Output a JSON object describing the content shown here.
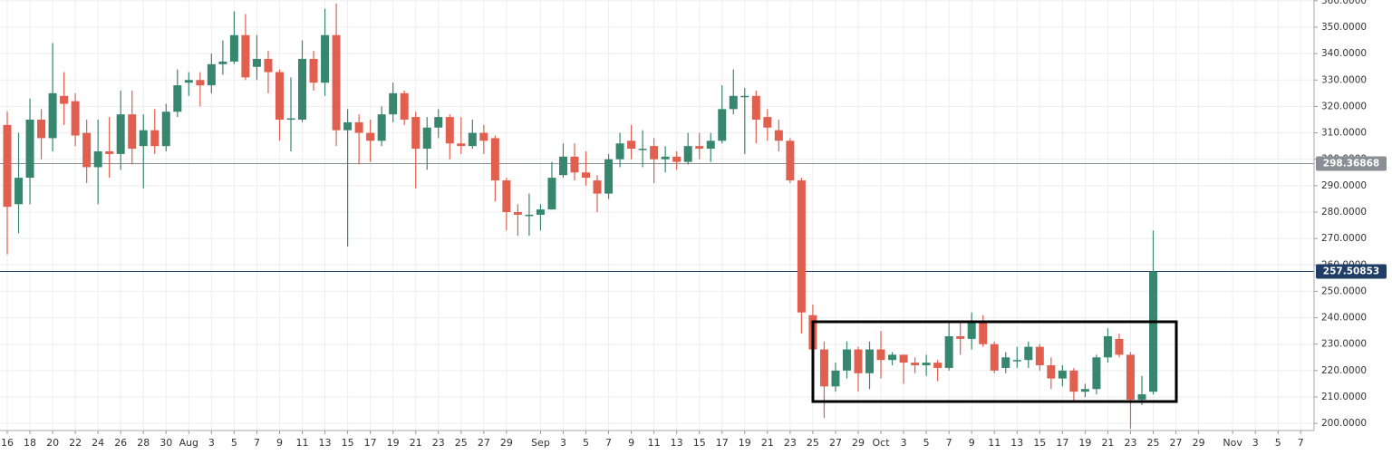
{
  "chart_data": {
    "type": "candlestick",
    "categories": [
      "16",
      null,
      "18",
      null,
      "20",
      null,
      "22",
      null,
      "24",
      null,
      "26",
      null,
      "28",
      null,
      "30",
      null,
      "Aug",
      null,
      "3",
      null,
      "5",
      null,
      "7",
      null,
      "9",
      null,
      "11",
      null,
      "13",
      null,
      "15",
      null,
      "17",
      null,
      "19",
      null,
      "21",
      null,
      "23",
      null,
      "25",
      null,
      "27",
      null,
      "29",
      null,
      null,
      "Sep",
      null,
      "3",
      null,
      "5",
      null,
      "7",
      null,
      "9",
      null,
      "11",
      null,
      "13",
      null,
      "15",
      null,
      "17",
      null,
      "19",
      null,
      "21",
      null,
      "23",
      null,
      "25",
      null,
      "27",
      null,
      "29",
      null,
      "Oct",
      null,
      "3",
      null,
      "5",
      null,
      "7",
      null,
      "9",
      null,
      "11",
      null,
      "13",
      null,
      "15",
      null,
      "17",
      null,
      "19",
      null,
      "21",
      null,
      "23",
      null,
      "25",
      null,
      "27",
      null,
      "29",
      null,
      null,
      "Nov",
      null,
      "3",
      null,
      "5",
      null,
      "7"
    ],
    "open": [
      313,
      283,
      293,
      315,
      308,
      324,
      322,
      310,
      297,
      303,
      302,
      317,
      305,
      311,
      305,
      318,
      329,
      330,
      328,
      336,
      337,
      347,
      335,
      338,
      333,
      315,
      315,
      338,
      329,
      347,
      311,
      314,
      310,
      307,
      317,
      325,
      316,
      304,
      312,
      316,
      306,
      305,
      310,
      308,
      292,
      280,
      279,
      279,
      281,
      294,
      301,
      295,
      292,
      287,
      300,
      307,
      304,
      305,
      300,
      301,
      299,
      305,
      304,
      307,
      319,
      324,
      324,
      316,
      311,
      307,
      292,
      241,
      228,
      214,
      220,
      228,
      219,
      228,
      224,
      226,
      223,
      222,
      223,
      221,
      233,
      232,
      239,
      230,
      221,
      224,
      224,
      229,
      222,
      217,
      220,
      212,
      213,
      225,
      232,
      226,
      209,
      212,
      null,
      null,
      null,
      null,
      null,
      null,
      null,
      null,
      null,
      null,
      null,
      null,
      null
    ],
    "high": [
      318,
      310,
      323,
      319,
      344,
      333,
      325,
      315,
      315,
      316,
      326,
      326,
      317,
      319,
      321,
      334,
      333,
      333,
      340,
      345,
      356,
      355,
      347,
      341,
      334,
      331,
      345,
      341,
      357,
      359,
      319,
      317,
      315,
      320,
      329,
      326,
      318,
      316,
      319,
      317,
      316,
      315,
      313,
      309,
      293,
      283,
      287,
      283,
      299,
      306,
      306,
      303,
      294,
      302,
      310,
      313,
      311,
      308,
      305,
      303,
      310,
      310,
      310,
      328,
      334,
      327,
      326,
      319,
      315,
      308,
      293,
      245,
      231,
      223,
      231,
      229,
      231,
      235,
      227,
      226,
      225,
      226,
      224,
      238,
      238,
      242,
      241,
      231,
      227,
      229,
      231,
      230,
      225,
      222,
      221,
      215,
      226,
      236,
      234,
      227,
      218,
      273,
      null,
      null,
      null,
      null,
      null,
      null,
      null,
      null,
      null,
      null,
      null,
      null,
      null
    ],
    "low": [
      264,
      272,
      283,
      300,
      303,
      313,
      305,
      291,
      283,
      293,
      296,
      298,
      289,
      302,
      303,
      316,
      324,
      320,
      325,
      332,
      336,
      330,
      330,
      325,
      307,
      303,
      314,
      326,
      324,
      305,
      267,
      298,
      299,
      305,
      314,
      313,
      289,
      296,
      308,
      300,
      302,
      304,
      302,
      284,
      273,
      271,
      271,
      273,
      281,
      293,
      292,
      290,
      280,
      285,
      297,
      300,
      297,
      291,
      295,
      296,
      298,
      300,
      299,
      306,
      317,
      302,
      306,
      307,
      303,
      291,
      234,
      226,
      202,
      212,
      217,
      212,
      213,
      217,
      222,
      215,
      219,
      218,
      216,
      220,
      226,
      228,
      229,
      219,
      219,
      221,
      221,
      220,
      213,
      214,
      208,
      210,
      211,
      223,
      225,
      198,
      207,
      211,
      null,
      null,
      null,
      null,
      null,
      null,
      null,
      null,
      null,
      null,
      null,
      null,
      null
    ],
    "close": [
      282,
      293,
      315,
      308,
      325,
      321,
      309,
      297,
      303,
      302,
      317,
      304,
      311,
      305,
      318,
      328,
      330,
      328,
      336,
      337,
      347,
      331,
      338,
      333,
      315,
      315.5,
      338,
      329,
      347,
      311,
      314,
      310,
      307,
      317,
      325,
      315,
      304,
      312,
      316,
      306,
      305,
      310,
      307,
      292,
      280,
      279,
      279,
      281,
      293,
      301,
      295,
      293,
      287,
      300,
      306,
      304,
      304,
      300,
      301,
      299,
      305,
      304,
      307,
      319,
      324,
      324,
      315,
      312,
      307,
      292,
      242,
      228,
      214,
      220,
      228,
      219,
      228,
      224,
      226,
      223,
      222,
      223,
      221,
      233,
      232,
      239,
      230,
      220,
      225,
      224,
      229,
      222,
      217,
      220,
      212,
      213,
      225,
      233,
      226,
      209,
      211,
      257.50853,
      null,
      null,
      null,
      null,
      null,
      null,
      null,
      null,
      null,
      null,
      null,
      null,
      null
    ],
    "up_color": "#37876f",
    "down_color": "#e05f4e",
    "ylim": [
      197.3,
      360.3
    ],
    "yticks": [
      {
        "value": 200,
        "label": "200.0000"
      },
      {
        "value": 210,
        "label": "210.0000"
      },
      {
        "value": 220,
        "label": "220.0000"
      },
      {
        "value": 230,
        "label": "230.0000"
      },
      {
        "value": 240,
        "label": "240.0000"
      },
      {
        "value": 250,
        "label": "250.0000"
      },
      {
        "value": 260,
        "label": "260.0000"
      },
      {
        "value": 270,
        "label": "270.0000"
      },
      {
        "value": 280,
        "label": "280.0000"
      },
      {
        "value": 290,
        "label": "290.0000"
      },
      {
        "value": 300,
        "label": "300.0000"
      },
      {
        "value": 310,
        "label": "310.0000"
      },
      {
        "value": 320,
        "label": "320.0000"
      },
      {
        "value": 330,
        "label": "330.0000"
      },
      {
        "value": 340,
        "label": "340.0000"
      },
      {
        "value": 350,
        "label": "350.0000"
      },
      {
        "value": 360,
        "label": "360.0000"
      }
    ],
    "grid": true,
    "price_lines": [
      {
        "value": 298.36868,
        "color": "#8a8f96"
      },
      {
        "value": 257.50853,
        "color": "#1f3d66"
      }
    ]
  }
}
